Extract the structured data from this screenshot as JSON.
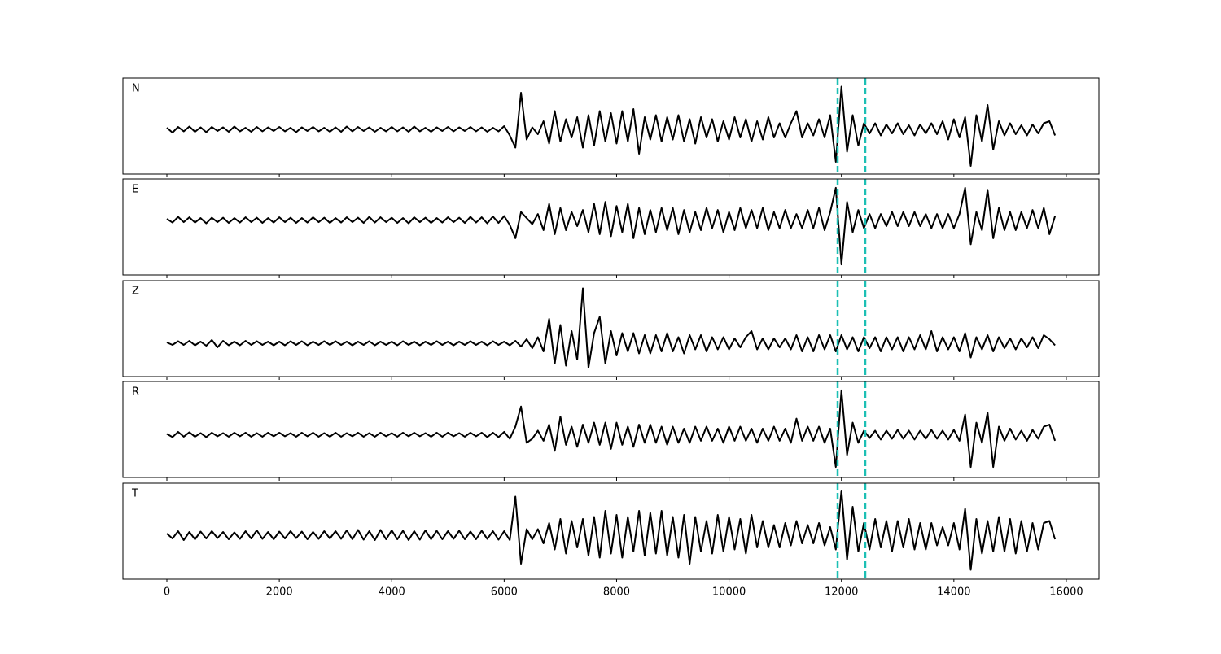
{
  "chart_data": {
    "type": "line",
    "xlim": [
      -782,
      16580
    ],
    "xticks": [
      0,
      2000,
      4000,
      6000,
      8000,
      10000,
      12000,
      14000,
      16000
    ],
    "vlines": [
      11932,
      12424
    ],
    "vline_color": "#1cbfb4",
    "x": [
      0,
      100,
      200,
      300,
      400,
      500,
      600,
      700,
      800,
      900,
      1000,
      1100,
      1200,
      1300,
      1400,
      1500,
      1600,
      1700,
      1800,
      1900,
      2000,
      2100,
      2200,
      2300,
      2400,
      2500,
      2600,
      2700,
      2800,
      2900,
      3000,
      3100,
      3200,
      3300,
      3400,
      3500,
      3600,
      3700,
      3800,
      3900,
      4000,
      4100,
      4200,
      4300,
      4400,
      4500,
      4600,
      4700,
      4800,
      4900,
      5000,
      5100,
      5200,
      5300,
      5400,
      5500,
      5600,
      5700,
      5800,
      5900,
      6000,
      6100,
      6200,
      6300,
      6400,
      6500,
      6600,
      6700,
      6800,
      6900,
      7000,
      7100,
      7200,
      7300,
      7400,
      7500,
      7600,
      7700,
      7800,
      7900,
      8000,
      8100,
      8200,
      8300,
      8400,
      8500,
      8600,
      8700,
      8800,
      8900,
      9000,
      9100,
      9200,
      9300,
      9400,
      9500,
      9600,
      9700,
      9800,
      9900,
      10000,
      10100,
      10200,
      10300,
      10400,
      10500,
      10600,
      10700,
      10800,
      10900,
      11000,
      11100,
      11200,
      11300,
      11400,
      11500,
      11600,
      11700,
      11800,
      11900,
      12000,
      12100,
      12200,
      12300,
      12400,
      12500,
      12600,
      12700,
      12800,
      12900,
      13000,
      13100,
      13200,
      13300,
      13400,
      13500,
      13600,
      13700,
      13800,
      13900,
      14000,
      14100,
      14200,
      14300,
      14400,
      14500,
      14600,
      14700,
      14800,
      14900,
      15000,
      15100,
      15200,
      15300,
      15400,
      15500,
      15600,
      15700,
      15800
    ],
    "series": [
      {
        "name": "N",
        "color": "#000000",
        "ylim": [
          -1.1,
          1.26
        ],
        "values": [
          0.04,
          -0.08,
          0.06,
          -0.05,
          0.07,
          -0.06,
          0.05,
          -0.07,
          0.06,
          -0.04,
          0.05,
          -0.06,
          0.07,
          -0.05,
          0.04,
          -0.06,
          0.06,
          -0.05,
          0.05,
          -0.04,
          0.06,
          -0.05,
          0.04,
          -0.07,
          0.05,
          -0.04,
          0.06,
          -0.05,
          0.04,
          -0.06,
          0.05,
          -0.06,
          0.07,
          -0.05,
          0.06,
          -0.04,
          0.05,
          -0.06,
          0.04,
          -0.05,
          0.06,
          -0.05,
          0.05,
          -0.06,
          0.07,
          -0.05,
          0.04,
          -0.06,
          0.05,
          -0.04,
          0.06,
          -0.05,
          0.05,
          -0.04,
          0.06,
          -0.05,
          0.05,
          -0.06,
          0.04,
          -0.05,
          0.08,
          -0.15,
          -0.45,
          0.9,
          -0.25,
          0.05,
          -0.12,
          0.2,
          -0.35,
          0.45,
          -0.3,
          0.25,
          -0.2,
          0.3,
          -0.45,
          0.35,
          -0.4,
          0.45,
          -0.3,
          0.4,
          -0.35,
          0.45,
          -0.3,
          0.5,
          -0.6,
          0.3,
          -0.25,
          0.35,
          -0.3,
          0.3,
          -0.25,
          0.35,
          -0.3,
          0.25,
          -0.35,
          0.3,
          -0.2,
          0.25,
          -0.3,
          0.2,
          -0.25,
          0.3,
          -0.2,
          0.25,
          -0.3,
          0.2,
          -0.25,
          0.3,
          -0.2,
          0.15,
          -0.2,
          0.15,
          0.45,
          -0.2,
          0.15,
          -0.15,
          0.25,
          -0.2,
          0.35,
          -0.8,
          1.05,
          -0.55,
          0.35,
          -0.4,
          0.15,
          -0.1,
          0.15,
          -0.15,
          0.12,
          -0.1,
          0.15,
          -0.12,
          0.1,
          -0.15,
          0.12,
          -0.1,
          0.15,
          -0.12,
          0.2,
          -0.25,
          0.25,
          -0.2,
          0.3,
          -0.9,
          0.35,
          -0.3,
          0.6,
          -0.5,
          0.2,
          -0.15,
          0.15,
          -0.12,
          0.1,
          -0.15,
          0.12,
          -0.1,
          0.15,
          0.2,
          -0.15
        ]
      },
      {
        "name": "E",
        "color": "#000000",
        "ylim": [
          -1.36,
          1.02
        ],
        "values": [
          0.03,
          -0.06,
          0.08,
          -0.05,
          0.07,
          -0.06,
          0.05,
          -0.08,
          0.06,
          -0.05,
          0.06,
          -0.07,
          0.05,
          -0.06,
          0.07,
          -0.05,
          0.06,
          -0.07,
          0.05,
          -0.06,
          0.07,
          -0.05,
          0.06,
          -0.07,
          0.05,
          -0.06,
          0.07,
          -0.05,
          0.06,
          -0.07,
          0.05,
          -0.06,
          0.07,
          -0.05,
          0.06,
          -0.07,
          0.08,
          -0.06,
          0.07,
          -0.05,
          0.06,
          -0.07,
          0.05,
          -0.08,
          0.07,
          -0.05,
          0.06,
          -0.07,
          0.05,
          -0.06,
          0.07,
          -0.05,
          0.06,
          -0.07,
          0.08,
          -0.06,
          0.07,
          -0.08,
          0.09,
          -0.07,
          0.1,
          -0.12,
          -0.45,
          0.2,
          0.05,
          -0.1,
          0.15,
          -0.25,
          0.4,
          -0.35,
          0.3,
          -0.25,
          0.2,
          -0.15,
          0.25,
          -0.3,
          0.4,
          -0.35,
          0.45,
          -0.4,
          0.35,
          -0.3,
          0.4,
          -0.45,
          0.3,
          -0.35,
          0.25,
          -0.3,
          0.3,
          -0.25,
          0.3,
          -0.35,
          0.25,
          -0.3,
          0.2,
          -0.25,
          0.3,
          -0.2,
          0.25,
          -0.3,
          0.2,
          -0.25,
          0.3,
          -0.2,
          0.25,
          -0.2,
          0.3,
          -0.25,
          0.2,
          -0.2,
          0.25,
          -0.2,
          0.15,
          -0.2,
          0.25,
          -0.2,
          0.3,
          -0.25,
          0.2,
          0.8,
          -1.1,
          0.45,
          -0.3,
          0.25,
          -0.2,
          0.15,
          -0.2,
          0.15,
          -0.15,
          0.2,
          -0.15,
          0.2,
          -0.15,
          0.2,
          -0.15,
          0.15,
          -0.2,
          0.15,
          -0.2,
          0.15,
          -0.2,
          0.15,
          0.8,
          -0.6,
          0.2,
          -0.25,
          0.75,
          -0.45,
          0.3,
          -0.25,
          0.2,
          -0.25,
          0.2,
          -0.2,
          0.25,
          -0.2,
          0.3,
          -0.35,
          0.1
        ]
      },
      {
        "name": "Z",
        "color": "#000000",
        "ylim": [
          -0.82,
          1.54
        ],
        "values": [
          0.02,
          -0.04,
          0.05,
          -0.04,
          0.06,
          -0.05,
          0.04,
          -0.06,
          0.08,
          -0.1,
          0.06,
          -0.05,
          0.04,
          -0.05,
          0.06,
          -0.04,
          0.05,
          -0.04,
          0.04,
          -0.05,
          0.04,
          -0.05,
          0.05,
          -0.04,
          0.05,
          -0.05,
          0.04,
          -0.04,
          0.05,
          -0.04,
          0.05,
          -0.04,
          0.04,
          -0.05,
          0.04,
          -0.04,
          0.05,
          -0.05,
          0.04,
          -0.04,
          0.04,
          -0.05,
          0.05,
          -0.04,
          0.04,
          -0.05,
          0.04,
          -0.04,
          0.05,
          -0.04,
          0.04,
          -0.05,
          0.04,
          -0.04,
          0.05,
          -0.04,
          0.04,
          -0.05,
          0.05,
          -0.04,
          0.04,
          -0.05,
          0.06,
          -0.08,
          0.1,
          -0.12,
          0.15,
          -0.2,
          0.6,
          -0.5,
          0.45,
          -0.55,
          0.3,
          -0.4,
          1.35,
          -0.6,
          0.25,
          0.65,
          -0.5,
          0.3,
          -0.3,
          0.25,
          -0.2,
          0.25,
          -0.25,
          0.2,
          -0.25,
          0.2,
          -0.2,
          0.25,
          -0.2,
          0.15,
          -0.25,
          0.2,
          -0.15,
          0.2,
          -0.2,
          0.15,
          -0.15,
          0.15,
          -0.15,
          0.12,
          -0.1,
          0.15,
          0.3,
          -0.15,
          0.12,
          -0.15,
          0.12,
          -0.1,
          0.12,
          -0.15,
          0.2,
          -0.2,
          0.15,
          -0.2,
          0.2,
          -0.15,
          0.2,
          -0.2,
          0.2,
          -0.15,
          0.15,
          -0.2,
          0.15,
          -0.12,
          0.15,
          -0.2,
          0.15,
          -0.15,
          0.15,
          -0.2,
          0.15,
          -0.15,
          0.2,
          -0.15,
          0.3,
          -0.2,
          0.15,
          -0.15,
          0.15,
          -0.2,
          0.25,
          -0.35,
          0.15,
          -0.15,
          0.2,
          -0.2,
          0.15,
          -0.12,
          0.12,
          -0.15,
          0.12,
          -0.1,
          0.15,
          -0.12,
          0.2,
          0.1,
          -0.05
        ]
      },
      {
        "name": "R",
        "color": "#000000",
        "ylim": [
          -1.06,
          1.32
        ],
        "values": [
          0.02,
          -0.06,
          0.07,
          -0.05,
          0.06,
          -0.05,
          0.04,
          -0.06,
          0.05,
          -0.04,
          0.04,
          -0.05,
          0.05,
          -0.04,
          0.05,
          -0.05,
          0.04,
          -0.05,
          0.05,
          -0.04,
          0.05,
          -0.04,
          0.04,
          -0.05,
          0.05,
          -0.04,
          0.05,
          -0.05,
          0.04,
          -0.05,
          0.05,
          -0.05,
          0.04,
          -0.04,
          0.05,
          -0.05,
          0.04,
          -0.05,
          0.05,
          -0.04,
          0.04,
          -0.05,
          0.05,
          -0.04,
          0.05,
          -0.04,
          0.04,
          -0.05,
          0.05,
          -0.05,
          0.05,
          -0.04,
          0.04,
          -0.05,
          0.05,
          -0.04,
          0.05,
          -0.06,
          0.05,
          -0.06,
          0.07,
          -0.1,
          0.2,
          0.7,
          -0.2,
          -0.1,
          0.1,
          -0.15,
          0.25,
          -0.4,
          0.45,
          -0.25,
          0.2,
          -0.3,
          0.25,
          -0.2,
          0.3,
          -0.25,
          0.3,
          -0.35,
          0.3,
          -0.25,
          0.2,
          -0.3,
          0.25,
          -0.2,
          0.25,
          -0.2,
          0.2,
          -0.25,
          0.2,
          -0.2,
          0.15,
          -0.2,
          0.2,
          -0.15,
          0.2,
          -0.15,
          0.15,
          -0.2,
          0.2,
          -0.15,
          0.2,
          -0.15,
          0.15,
          -0.2,
          0.15,
          -0.15,
          0.2,
          -0.15,
          0.15,
          -0.2,
          0.4,
          -0.15,
          0.2,
          -0.15,
          0.2,
          -0.2,
          0.15,
          -0.8,
          1.1,
          -0.5,
          0.3,
          -0.2,
          0.1,
          -0.08,
          0.1,
          -0.12,
          0.1,
          -0.1,
          0.12,
          -0.1,
          0.1,
          -0.12,
          0.1,
          -0.1,
          0.12,
          -0.1,
          0.1,
          -0.12,
          0.12,
          -0.15,
          0.5,
          -0.8,
          0.3,
          -0.2,
          0.55,
          -0.8,
          0.2,
          -0.15,
          0.15,
          -0.12,
          0.1,
          -0.15,
          0.12,
          -0.1,
          0.2,
          0.25,
          -0.15
        ]
      },
      {
        "name": "T",
        "color": "#000000",
        "ylim": [
          -1.08,
          1.28
        ],
        "values": [
          0.04,
          -0.08,
          0.1,
          -0.12,
          0.08,
          -0.1,
          0.09,
          -0.08,
          0.1,
          -0.07,
          0.08,
          -0.1,
          0.07,
          -0.09,
          0.1,
          -0.08,
          0.12,
          -0.09,
          0.08,
          -0.1,
          0.09,
          -0.08,
          0.1,
          -0.07,
          0.09,
          -0.1,
          0.08,
          -0.09,
          0.1,
          -0.08,
          0.1,
          -0.09,
          0.12,
          -0.1,
          0.13,
          -0.11,
          0.1,
          -0.12,
          0.13,
          -0.1,
          0.12,
          -0.1,
          0.11,
          -0.12,
          0.1,
          -0.11,
          0.12,
          -0.1,
          0.11,
          -0.1,
          0.1,
          -0.09,
          0.11,
          -0.1,
          0.09,
          -0.1,
          0.11,
          -0.09,
          0.1,
          -0.11,
          0.1,
          -0.12,
          0.95,
          -0.7,
          0.15,
          -0.1,
          0.15,
          -0.2,
          0.3,
          -0.35,
          0.4,
          -0.45,
          0.35,
          -0.3,
          0.4,
          -0.5,
          0.45,
          -0.55,
          0.6,
          -0.45,
          0.5,
          -0.55,
          0.45,
          -0.4,
          0.6,
          -0.5,
          0.55,
          -0.45,
          0.6,
          -0.5,
          0.45,
          -0.55,
          0.5,
          -0.7,
          0.45,
          -0.4,
          0.35,
          -0.45,
          0.5,
          -0.4,
          0.45,
          -0.35,
          0.4,
          -0.45,
          0.5,
          -0.3,
          0.35,
          -0.3,
          0.25,
          -0.3,
          0.3,
          -0.25,
          0.35,
          -0.2,
          0.25,
          -0.2,
          0.3,
          -0.25,
          0.2,
          -0.35,
          1.1,
          -0.6,
          0.7,
          -0.4,
          0.3,
          -0.35,
          0.4,
          -0.3,
          0.35,
          -0.4,
          0.35,
          -0.3,
          0.4,
          -0.35,
          0.3,
          -0.35,
          0.3,
          -0.25,
          0.2,
          -0.25,
          0.3,
          -0.35,
          0.65,
          -0.85,
          0.4,
          -0.45,
          0.35,
          -0.4,
          0.45,
          -0.4,
          0.4,
          -0.45,
          0.35,
          -0.4,
          0.3,
          -0.35,
          0.3,
          0.35,
          -0.1
        ]
      }
    ]
  }
}
